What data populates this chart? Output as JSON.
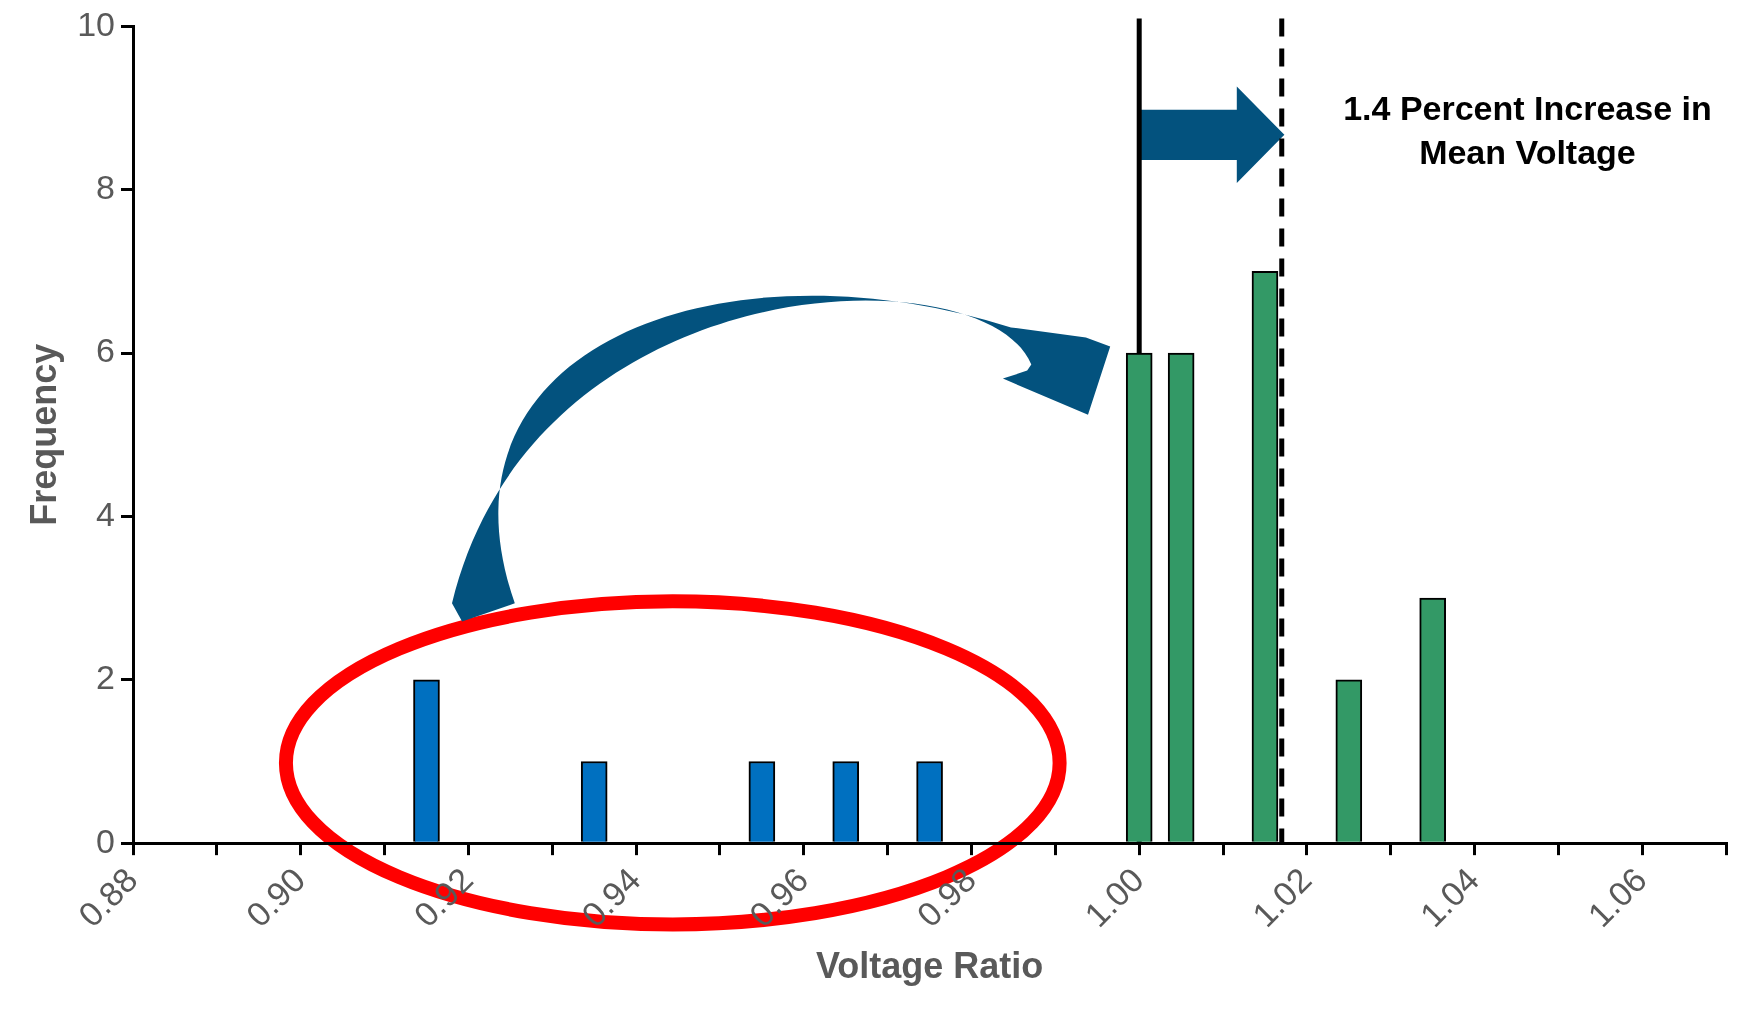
{
  "chart_data": {
    "type": "bar",
    "xlabel": "Voltage Ratio",
    "ylabel": "Frequency",
    "series": [
      {
        "color": "#0070c0",
        "x": [
          0.915,
          0.935,
          0.955,
          0.965,
          0.975
        ],
        "values": [
          2,
          1,
          1,
          1,
          1
        ]
      },
      {
        "color": "#339966",
        "x": [
          1.0,
          1.005,
          1.015,
          1.025,
          1.035
        ],
        "values": [
          6,
          6,
          7,
          2,
          3
        ]
      }
    ],
    "xlim": [
      0.88,
      1.07
    ],
    "xticks": [
      {
        "value": 0.88,
        "label": "0.88"
      },
      {
        "value": 0.89,
        "label": null
      },
      {
        "value": 0.9,
        "label": "0.90"
      },
      {
        "value": 0.91,
        "label": null
      },
      {
        "value": 0.92,
        "label": "0.92"
      },
      {
        "value": 0.93,
        "label": null
      },
      {
        "value": 0.94,
        "label": "0.94"
      },
      {
        "value": 0.95,
        "label": null
      },
      {
        "value": 0.96,
        "label": "0.96"
      },
      {
        "value": 0.97,
        "label": null
      },
      {
        "value": 0.98,
        "label": "0.98"
      },
      {
        "value": 0.99,
        "label": null
      },
      {
        "value": 1.0,
        "label": "1.00"
      },
      {
        "value": 1.01,
        "label": null
      },
      {
        "value": 1.02,
        "label": "1.02"
      },
      {
        "value": 1.03,
        "label": null
      },
      {
        "value": 1.04,
        "label": "1.04"
      },
      {
        "value": 1.05,
        "label": null
      },
      {
        "value": 1.06,
        "label": "1.06"
      },
      {
        "value": 1.07,
        "label": null
      }
    ],
    "ylim": [
      0,
      10
    ],
    "yticks": [
      0,
      2,
      4,
      6,
      8,
      10
    ],
    "grid": false,
    "ref_lines": [
      {
        "axis": "x",
        "value": 1.0,
        "color": "#000000",
        "line_style": "solid"
      },
      {
        "axis": "x",
        "value": 1.017,
        "color": "#000000",
        "line_style": "dashed"
      }
    ],
    "annotations": [
      "1.4 Percent Increase in Mean Voltage"
    ]
  }
}
